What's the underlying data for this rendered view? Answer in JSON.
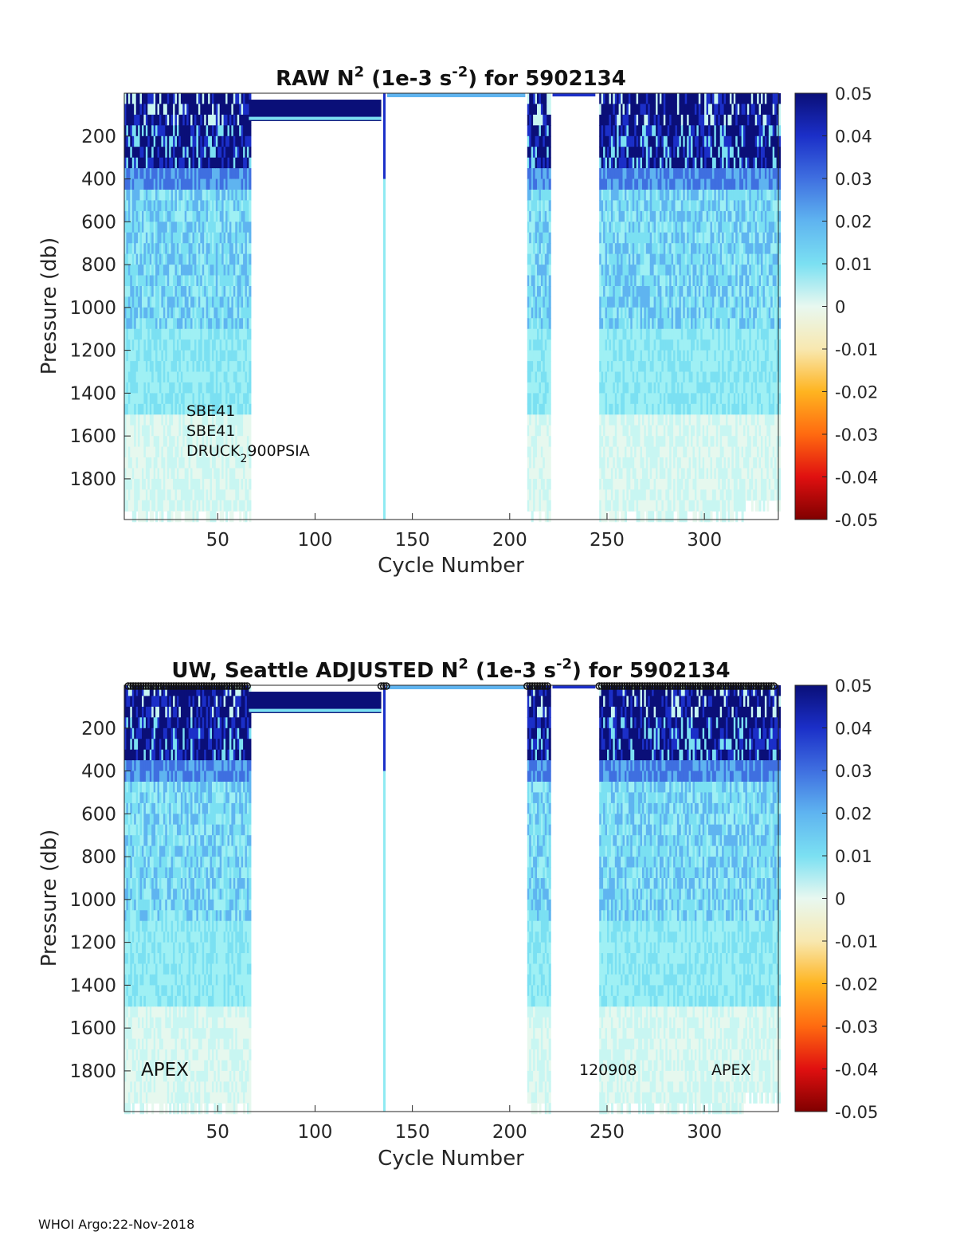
{
  "footer": "WHOI Argo:22-Nov-2018",
  "colorbar": {
    "ticks": [
      "0.05",
      "0.04",
      "0.03",
      "0.02",
      "0.01",
      "0",
      "-0.01",
      "-0.02",
      "-0.03",
      "-0.04",
      "-0.05"
    ],
    "colors": [
      "#0a0f78",
      "#1b2fc8",
      "#3f6fe0",
      "#5fb4f0",
      "#7be0f2",
      "#e8f8f0",
      "#f8e8b0",
      "#ffb420",
      "#ff6a10",
      "#e01010",
      "#800000"
    ]
  },
  "chart_data": [
    {
      "type": "heatmap",
      "title_parts": {
        "pre": "RAW N",
        "sup1": "2",
        "mid": " (1e-3 s",
        "sup2": "-2",
        "post": ") for 5902134"
      },
      "xlabel": "Cycle Number",
      "ylabel": "Pressure (db)",
      "xlim": [
        2,
        338
      ],
      "ylim": [
        1990,
        0
      ],
      "xticks": [
        "50",
        "100",
        "150",
        "200",
        "250",
        "300"
      ],
      "yticks": [
        "200",
        "400",
        "600",
        "800",
        "1000",
        "1200",
        "1400",
        "1600",
        "1800"
      ],
      "clim": [
        -0.05,
        0.05
      ],
      "annotations": [
        "SBE41",
        "SBE41",
        "DRUCK",
        "2",
        "900PSIA"
      ],
      "has_markers": false
    },
    {
      "type": "heatmap",
      "title_parts": {
        "pre": "UW, Seattle  ADJUSTED N",
        "sup1": "2",
        "mid": " (1e-3 s",
        "sup2": "-2",
        "post": ") for 5902134"
      },
      "xlabel": "Cycle Number",
      "ylabel": "Pressure (db)",
      "xlim": [
        2,
        338
      ],
      "ylim": [
        1990,
        0
      ],
      "xticks": [
        "50",
        "100",
        "150",
        "200",
        "250",
        "300"
      ],
      "yticks": [
        "200",
        "400",
        "600",
        "800",
        "1000",
        "1200",
        "1400",
        "1600",
        "1800"
      ],
      "clim": [
        -0.05,
        0.05
      ],
      "annotations": [
        "APEX",
        "120908",
        "APEX"
      ],
      "has_markers": true
    }
  ]
}
